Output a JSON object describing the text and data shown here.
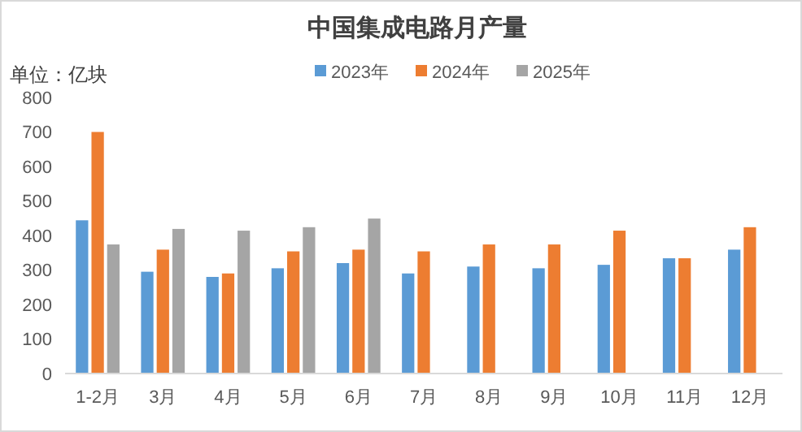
{
  "chart_data": {
    "type": "bar",
    "title": "中国集成电路月产量",
    "ylabel": "单位：亿块",
    "categories": [
      "1-2月",
      "3月",
      "4月",
      "5月",
      "6月",
      "7月",
      "8月",
      "9月",
      "10月",
      "11月",
      "12月"
    ],
    "series": [
      {
        "name": "2023年",
        "color": "#5b9bd5",
        "values": [
          444,
          295,
          280,
          305,
          320,
          290,
          310,
          305,
          315,
          334,
          359
        ]
      },
      {
        "name": "2024年",
        "color": "#ed7d31",
        "values": [
          700,
          359,
          290,
          354,
          359,
          354,
          374,
          374,
          414,
          334,
          424
        ]
      },
      {
        "name": "2025年",
        "color": "#a5a5a5",
        "values": [
          374,
          419,
          414,
          424,
          449,
          null,
          null,
          null,
          null,
          null,
          null
        ]
      }
    ],
    "ylim": [
      0,
      800
    ],
    "yticks": [
      0,
      100,
      200,
      300,
      400,
      500,
      600,
      700,
      800
    ],
    "grid": false,
    "legend": "top"
  }
}
